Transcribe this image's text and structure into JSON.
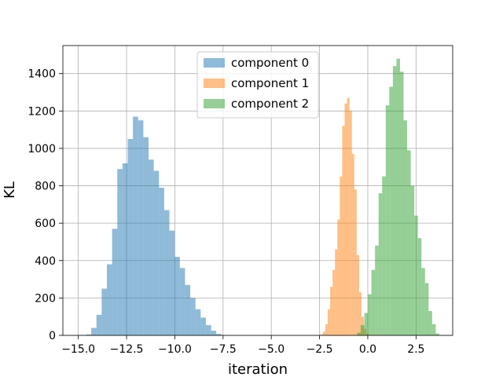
{
  "chart_data": {
    "type": "bar",
    "title": "",
    "xlabel": "iteration",
    "ylabel": "KL",
    "xlim": [
      -15.8,
      4.4
    ],
    "ylim": [
      0,
      1550
    ],
    "grid": true,
    "legend_position": "top-center",
    "x_ticks": [
      -15.0,
      -12.5,
      -10.0,
      -7.5,
      -5.0,
      -2.5,
      0.0,
      2.5
    ],
    "x_tick_labels": [
      "−15.0",
      "−12.5",
      "−10.0",
      "−7.5",
      "−5.0",
      "−2.5",
      "0.0",
      "2.5"
    ],
    "y_ticks": [
      0,
      200,
      400,
      600,
      800,
      1000,
      1200,
      1400
    ],
    "y_tick_labels": [
      "0",
      "200",
      "400",
      "600",
      "800",
      "1000",
      "1200",
      "1400"
    ],
    "series": [
      {
        "name": "component 0",
        "color": "#1f77b4",
        "bin_start": -14.6,
        "bin_width": 0.27,
        "counts": [
          5,
          40,
          110,
          250,
          380,
          570,
          890,
          920,
          1050,
          1170,
          1150,
          1060,
          940,
          880,
          790,
          670,
          560,
          420,
          360,
          270,
          200,
          140,
          95,
          55,
          25,
          8
        ]
      },
      {
        "name": "component 1",
        "color": "#ff7f0e",
        "bin_start": -2.45,
        "bin_width": 0.125,
        "counts": [
          5,
          20,
          60,
          140,
          260,
          350,
          460,
          620,
          850,
          1120,
          1240,
          1270,
          1200,
          970,
          780,
          430,
          230,
          100,
          35,
          10
        ]
      },
      {
        "name": "component 2",
        "color": "#2ca02c",
        "bin_start": -0.55,
        "bin_width": 0.185,
        "counts": [
          15,
          55,
          120,
          220,
          350,
          480,
          760,
          850,
          1230,
          1330,
          1440,
          1480,
          1410,
          1150,
          990,
          800,
          640,
          520,
          360,
          280,
          130,
          60,
          10
        ]
      }
    ]
  }
}
